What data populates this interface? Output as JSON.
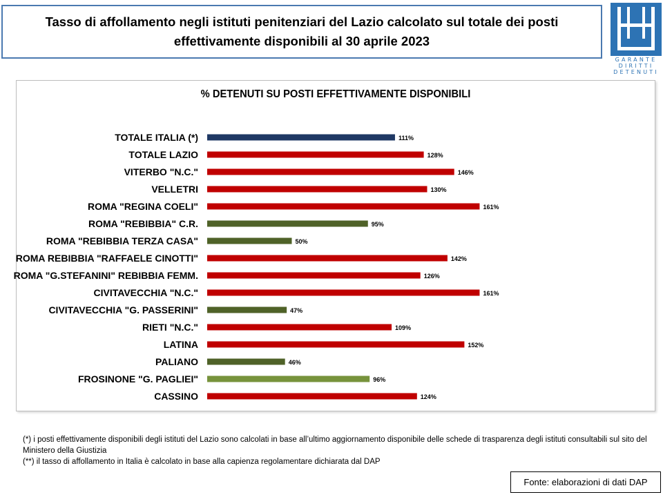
{
  "header": {
    "title_line1": "Tasso di affollamento negli istituti penitenziari del Lazio calcolato sul totale dei posti",
    "title_line2": "effettivamente disponibili al 30 aprile 2023"
  },
  "logo": {
    "icon": "garante-logo-icon",
    "text_line1": "GARANTE",
    "text_line2": "DIRITTI",
    "text_line3": "DETENUTI",
    "color": "#2d73b4"
  },
  "chart_data": {
    "type": "bar",
    "orientation": "horizontal",
    "title": "% DETENUTI SU POSTI EFFETTIVAMENTE DISPONIBILI",
    "categories": [
      "TOTALE ITALIA (*)",
      "TOTALE LAZIO",
      "VITERBO \"N.C.\"",
      "VELLETRI",
      "ROMA \"REGINA COELI\"",
      "ROMA \"REBIBBIA\" C.R.",
      "ROMA \"REBIBBIA TERZA CASA\"",
      "ROMA REBIBBIA \"RAFFAELE CINOTTI\"",
      "ROMA \"G.STEFANINI\" REBIBBIA FEMM.",
      "CIVITAVECCHIA \"N.C.\"",
      "CIVITAVECCHIA \"G. PASSERINI\"",
      "RIETI \"N.C.\"",
      "LATINA",
      "PALIANO",
      "FROSINONE \"G. PAGLIEI\"",
      "CASSINO"
    ],
    "values": [
      111,
      128,
      146,
      130,
      161,
      95,
      50,
      142,
      126,
      161,
      47,
      109,
      152,
      46,
      96,
      124
    ],
    "data_labels": [
      "111%",
      "128%",
      "146%",
      "130%",
      "161%",
      "95%",
      "50%",
      "142%",
      "126%",
      "161%",
      "47%",
      "109%",
      "152%",
      "46%",
      "96%",
      "124%"
    ],
    "bar_colors": [
      "#1f3864",
      "#c00000",
      "#c00000",
      "#c00000",
      "#c00000",
      "#4f6228",
      "#4f6228",
      "#c00000",
      "#c00000",
      "#c00000",
      "#4f6228",
      "#c00000",
      "#c00000",
      "#4f6228",
      "#77933c",
      "#c00000"
    ],
    "xlim": [
      0,
      180
    ],
    "grid": false,
    "legend": "none"
  },
  "notes": {
    "line1": "(*) i posti effettivamente disponibili  degli istituti del Lazio sono  calcolati in base all’ultimo aggiornamento disponibile  delle schede  di trasparenza degli istituti consultabili  sul sito del Ministero della Giustizia",
    "line2": "(**) il tasso di affollamento  in Italia è calcolato in base alla capienza regolamentare dichiarata dal DAP"
  },
  "source": {
    "label": "Fonte: elaborazioni di dati DAP"
  }
}
